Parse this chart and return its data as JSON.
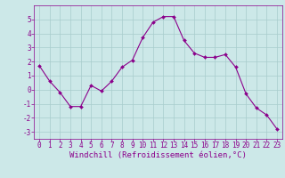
{
  "x": [
    0,
    1,
    2,
    3,
    4,
    5,
    6,
    7,
    8,
    9,
    10,
    11,
    12,
    13,
    14,
    15,
    16,
    17,
    18,
    19,
    20,
    21,
    22,
    23
  ],
  "y": [
    1.7,
    0.6,
    -0.2,
    -1.2,
    -1.2,
    0.3,
    -0.1,
    0.6,
    1.6,
    2.1,
    3.7,
    4.8,
    5.2,
    5.2,
    3.5,
    2.6,
    2.3,
    2.3,
    2.5,
    1.6,
    -0.3,
    -1.3,
    -1.8,
    -2.8
  ],
  "line_color": "#8B008B",
  "marker": "D",
  "marker_size": 2.0,
  "background_color": "#cce8e8",
  "grid_color": "#a8cccc",
  "xlabel": "Windchill (Refroidissement éolien,°C)",
  "xlabel_color": "#8B008B",
  "ylim": [
    -3.5,
    6.0
  ],
  "yticks": [
    -3,
    -2,
    -1,
    0,
    1,
    2,
    3,
    4,
    5
  ],
  "xticks": [
    0,
    1,
    2,
    3,
    4,
    5,
    6,
    7,
    8,
    9,
    10,
    11,
    12,
    13,
    14,
    15,
    16,
    17,
    18,
    19,
    20,
    21,
    22,
    23
  ],
  "tick_color": "#8B008B",
  "tick_fontsize": 5.5,
  "xlabel_fontsize": 6.5
}
